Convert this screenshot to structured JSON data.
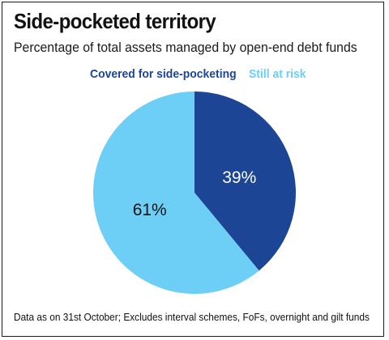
{
  "title": "Side-pocketed territory",
  "subtitle": "Percentage of total assets managed by open-end debt funds",
  "footnote": "Data as on 31st October; Excludes interval schemes, FoFs, overnight and gilt funds",
  "chart_data": {
    "type": "pie",
    "title": "Side-pocketed territory",
    "subtitle": "Percentage of total assets managed by open-end debt funds",
    "legend_position": "top",
    "series": [
      {
        "name": "Covered for side-pocketing",
        "value": 39,
        "label": "39%",
        "color": "#1d4596",
        "label_color": "#ffffff"
      },
      {
        "name": "Still at risk",
        "value": 61,
        "label": "61%",
        "color": "#6dcff6",
        "label_color": "#111111"
      }
    ],
    "start_angle": "12 o'clock",
    "direction": "clockwise"
  }
}
